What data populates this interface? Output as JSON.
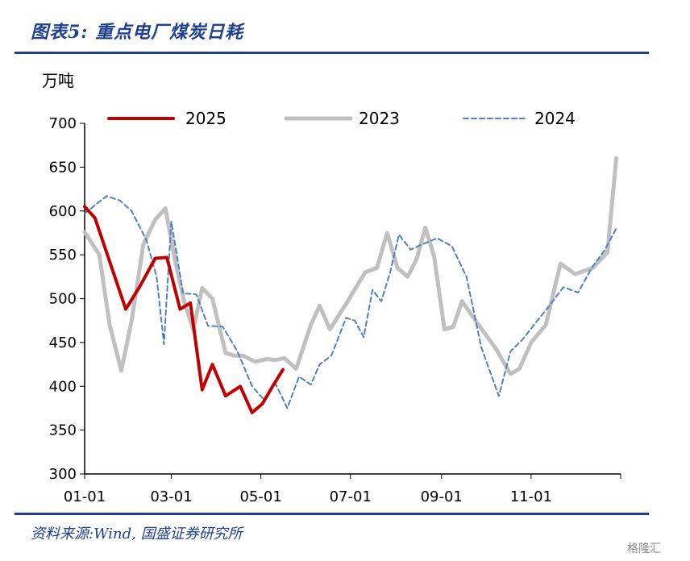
{
  "header": {
    "title": "图表5:  重点电厂煤炭日耗"
  },
  "unit_label": "万吨",
  "source": "资料来源:Wind, 国盛证券研究所",
  "watermark": "格隆汇",
  "chart_data": {
    "type": "line",
    "title": "图表5:  重点电厂煤炭日耗",
    "ylabel": "万吨",
    "xlabel": "",
    "ylim": [
      300,
      700
    ],
    "yticks": [
      300,
      350,
      400,
      450,
      500,
      550,
      600,
      650,
      700
    ],
    "xticks": [
      "01-01",
      "03-01",
      "05-01",
      "07-01",
      "09-01",
      "11-01"
    ],
    "xtick_days": [
      0,
      59,
      120,
      181,
      243,
      304
    ],
    "xlim_days": [
      0,
      365
    ],
    "legend_position": "top",
    "series": [
      {
        "name": "2025",
        "color": "#c00000",
        "style": "solid",
        "x": [
          0,
          7,
          28,
          38,
          48,
          56,
          65,
          72,
          80,
          87,
          96,
          106,
          114,
          121,
          128,
          135
        ],
        "y": [
          605,
          592,
          488,
          515,
          546,
          547,
          488,
          495,
          396,
          425,
          389,
          400,
          370,
          380,
          400,
          419
        ]
      },
      {
        "name": "2023",
        "color": "#c0c0c0",
        "style": "solid",
        "x": [
          0,
          10,
          17,
          25,
          32,
          40,
          48,
          55,
          62,
          68,
          74,
          80,
          87,
          96,
          102,
          108,
          116,
          124,
          130,
          136,
          144,
          154,
          160,
          167,
          178,
          191,
          199,
          206,
          213,
          220,
          226,
          232,
          238,
          245,
          251,
          257,
          267,
          280,
          290,
          296,
          304,
          314,
          324,
          334,
          346,
          356,
          362
        ],
        "y": [
          576,
          550,
          470,
          418,
          475,
          562,
          590,
          603,
          540,
          495,
          465,
          512,
          500,
          438,
          435,
          435,
          428,
          431,
          430,
          432,
          420,
          470,
          492,
          465,
          494,
          530,
          535,
          575,
          535,
          525,
          545,
          581,
          548,
          465,
          468,
          497,
          473,
          443,
          414,
          420,
          450,
          470,
          540,
          528,
          535,
          553,
          660
        ]
      },
      {
        "name": "2024",
        "color": "#4f81bd",
        "style": "dashed",
        "x": [
          0,
          8,
          15,
          24,
          32,
          42,
          49,
          54,
          59,
          67,
          76,
          84,
          94,
          104,
          114,
          122,
          130,
          138,
          146,
          154,
          160,
          168,
          178,
          184,
          190,
          196,
          202,
          208,
          214,
          222,
          230,
          240,
          250,
          260,
          270,
          282,
          290,
          298,
          306,
          316,
          326,
          336,
          346,
          354,
          362
        ],
        "y": [
          597,
          608,
          617,
          612,
          600,
          567,
          525,
          448,
          588,
          506,
          505,
          469,
          468,
          440,
          400,
          385,
          403,
          375,
          411,
          402,
          425,
          435,
          478,
          475,
          456,
          510,
          497,
          530,
          573,
          556,
          562,
          569,
          560,
          525,
          445,
          389,
          440,
          453,
          470,
          491,
          513,
          507,
          537,
          555,
          580
        ]
      }
    ]
  }
}
